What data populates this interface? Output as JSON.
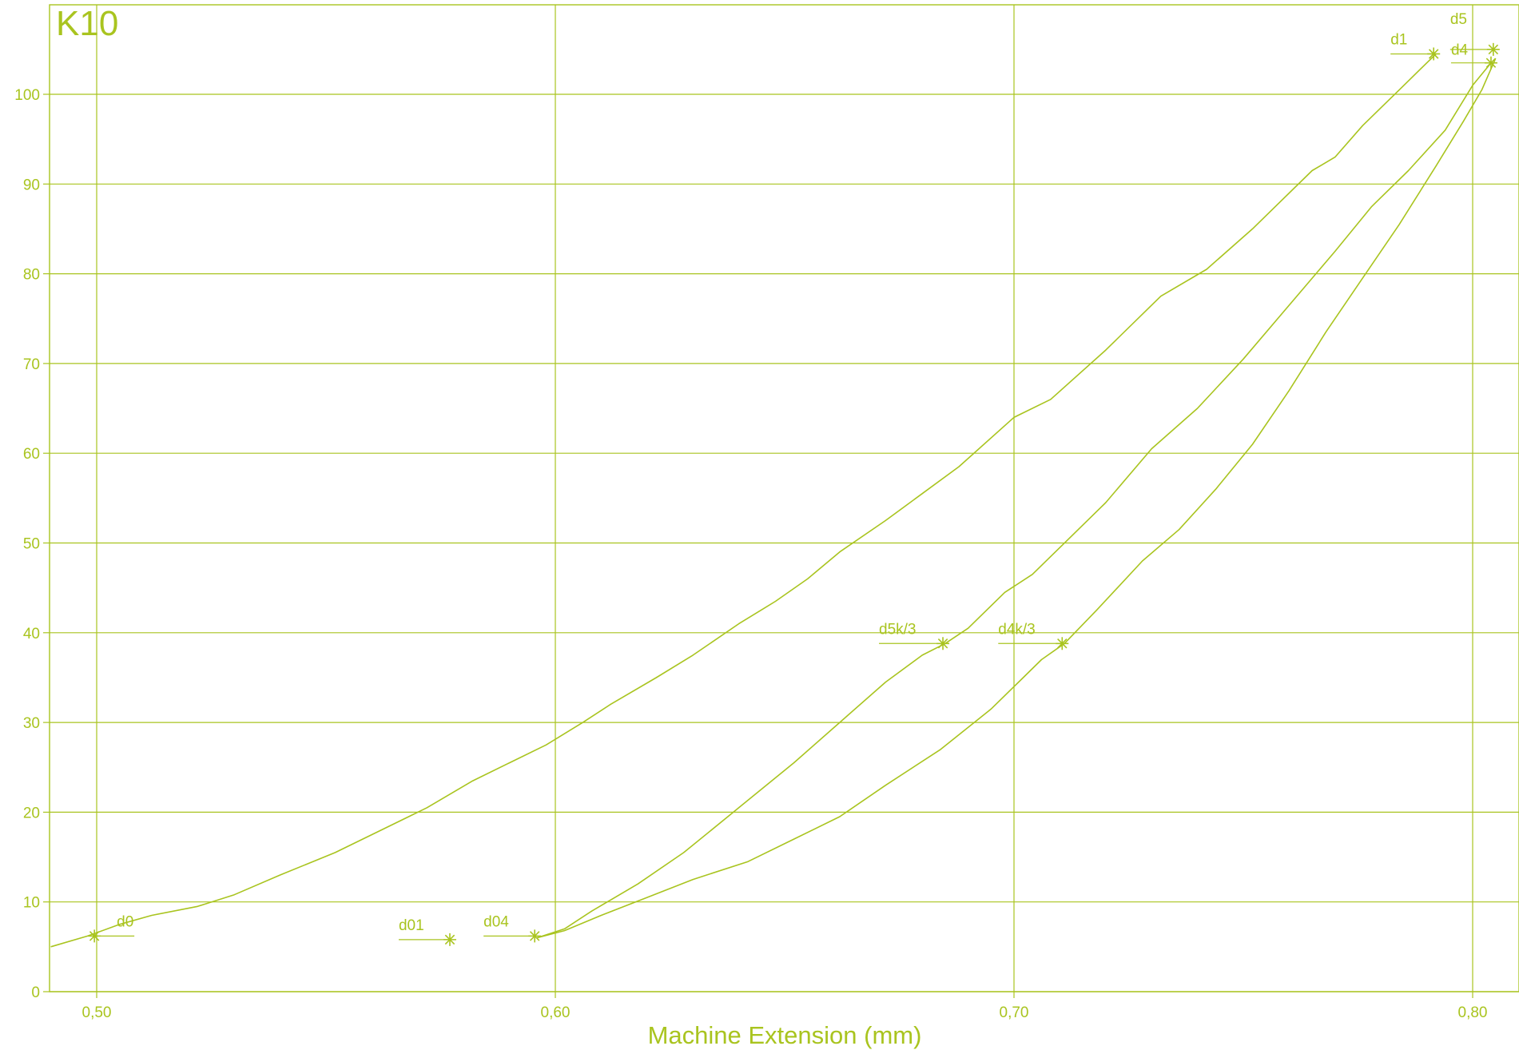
{
  "chart_data": {
    "type": "line",
    "title": "K10",
    "xlabel": "Machine Extension (mm)",
    "ylabel": "",
    "xlim": [
      0.49,
      0.805
    ],
    "ylim": [
      0,
      110
    ],
    "grid": true,
    "x_ticks": [
      0.5,
      0.6,
      0.7,
      0.8
    ],
    "x_tick_labels": [
      "0,50",
      "0,60",
      "0,70",
      "0,80"
    ],
    "y_ticks": [
      0,
      10,
      20,
      30,
      40,
      50,
      60,
      70,
      80,
      90,
      100
    ],
    "y_tick_labels": [
      "0",
      "10",
      "20",
      "30",
      "40",
      "50",
      "60",
      "70",
      "80",
      "90",
      "100"
    ],
    "colors": {
      "line": "#a9c41f"
    },
    "series": [
      {
        "x": [
          0.49,
          0.498,
          0.505,
          0.512,
          0.522,
          0.53,
          0.54,
          0.552,
          0.562,
          0.572,
          0.582,
          0.59,
          0.598,
          0.606,
          0.612,
          0.622,
          0.63,
          0.64,
          0.648,
          0.655,
          0.662,
          0.672,
          0.68,
          0.688,
          0.7,
          0.708,
          0.72,
          0.732,
          0.742,
          0.752,
          0.765,
          0.77,
          0.776,
          0.784,
          0.79,
          0.792
        ],
        "y": [
          5.0,
          6.2,
          7.5,
          8.5,
          9.5,
          10.8,
          13.0,
          15.5,
          18.0,
          20.5,
          23.5,
          25.5,
          27.5,
          30.0,
          32.0,
          35.0,
          37.5,
          41.0,
          43.5,
          46.0,
          49.0,
          52.5,
          55.5,
          58.5,
          64.0,
          66.0,
          71.5,
          77.5,
          80.5,
          85.0,
          91.5,
          93.0,
          96.5,
          100.5,
          103.5,
          104.5
        ]
      },
      {
        "x": [
          0.596,
          0.602,
          0.608,
          0.618,
          0.628,
          0.64,
          0.652,
          0.662,
          0.672,
          0.68,
          0.685,
          0.69,
          0.698,
          0.704,
          0.712,
          0.72,
          0.73,
          0.74,
          0.75,
          0.76,
          0.77,
          0.778,
          0.786,
          0.794,
          0.8,
          0.804
        ],
        "y": [
          6.0,
          7.0,
          9.0,
          12.0,
          15.5,
          20.5,
          25.5,
          30.0,
          34.5,
          37.5,
          38.8,
          40.5,
          44.5,
          46.5,
          50.5,
          54.5,
          60.5,
          65.0,
          70.5,
          76.5,
          82.5,
          87.5,
          91.5,
          96.0,
          101.0,
          103.5
        ]
      },
      {
        "x": [
          0.596,
          0.602,
          0.61,
          0.62,
          0.63,
          0.642,
          0.652,
          0.662,
          0.672,
          0.684,
          0.695,
          0.702,
          0.706,
          0.711,
          0.718,
          0.728,
          0.736,
          0.744,
          0.752,
          0.76,
          0.768,
          0.776,
          0.784,
          0.792,
          0.798,
          0.802,
          0.805
        ],
        "y": [
          6.0,
          6.8,
          8.5,
          10.5,
          12.5,
          14.5,
          17.0,
          19.5,
          23.0,
          27.0,
          31.5,
          35.0,
          37.0,
          38.8,
          42.5,
          48.0,
          51.5,
          56.0,
          61.0,
          67.0,
          73.5,
          79.5,
          85.5,
          92.0,
          97.0,
          100.5,
          104.0
        ]
      }
    ],
    "markers": [
      {
        "label": "d0",
        "x": 0.4995,
        "y": 6.2
      },
      {
        "label": "d01",
        "x": 0.577,
        "y": 5.8
      },
      {
        "label": "d04",
        "x": 0.5955,
        "y": 6.2
      },
      {
        "label": "d5k/3",
        "x": 0.6845,
        "y": 38.8
      },
      {
        "label": "d4k/3",
        "x": 0.7105,
        "y": 38.8
      },
      {
        "label": "d1",
        "x": 0.7915,
        "y": 104.5
      },
      {
        "label": "d5",
        "x": 0.8045,
        "y": 105.0
      },
      {
        "label": "d4",
        "x": 0.804,
        "y": 103.5
      }
    ]
  }
}
